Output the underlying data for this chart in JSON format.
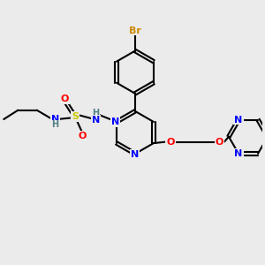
{
  "background_color": "#ebebeb",
  "bond_color": "#000000",
  "atom_colors": {
    "N": "#0000ff",
    "O": "#ff0000",
    "S": "#cccc00",
    "Br": "#cc8800",
    "H": "#508080",
    "C": "#000000"
  },
  "figsize": [
    3.0,
    3.0
  ],
  "dpi": 100,
  "xlim": [
    0,
    10
  ],
  "ylim": [
    0,
    10
  ]
}
